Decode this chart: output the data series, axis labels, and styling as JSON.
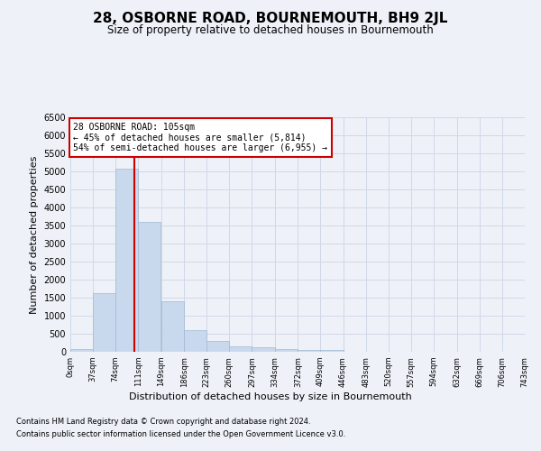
{
  "title": "28, OSBORNE ROAD, BOURNEMOUTH, BH9 2JL",
  "subtitle": "Size of property relative to detached houses in Bournemouth",
  "xlabel": "Distribution of detached houses by size in Bournemouth",
  "ylabel": "Number of detached properties",
  "bin_edges": [
    0,
    37,
    74,
    111,
    149,
    186,
    223,
    260,
    297,
    334,
    372,
    409,
    446,
    483,
    520,
    557,
    594,
    632,
    669,
    706,
    743
  ],
  "bar_heights": [
    75,
    1625,
    5080,
    3600,
    1400,
    600,
    290,
    145,
    115,
    80,
    55,
    55,
    0,
    0,
    0,
    0,
    0,
    0,
    0,
    0
  ],
  "bar_color": "#c9d9ed",
  "bar_edge_color": "#a0b8d0",
  "grid_color": "#d0d8e8",
  "property_line_x": 105,
  "property_line_color": "#cc0000",
  "annotation_line1": "28 OSBORNE ROAD: 105sqm",
  "annotation_line2": "← 45% of detached houses are smaller (5,814)",
  "annotation_line3": "54% of semi-detached houses are larger (6,955) →",
  "annotation_box_color": "#cc0000",
  "ylim": [
    0,
    6500
  ],
  "yticks": [
    0,
    500,
    1000,
    1500,
    2000,
    2500,
    3000,
    3500,
    4000,
    4500,
    5000,
    5500,
    6000,
    6500
  ],
  "tick_labels": [
    "0sqm",
    "37sqm",
    "74sqm",
    "111sqm",
    "149sqm",
    "186sqm",
    "223sqm",
    "260sqm",
    "297sqm",
    "334sqm",
    "372sqm",
    "409sqm",
    "446sqm",
    "483sqm",
    "520sqm",
    "557sqm",
    "594sqm",
    "632sqm",
    "669sqm",
    "706sqm",
    "743sqm"
  ],
  "footnote1": "Contains HM Land Registry data © Crown copyright and database right 2024.",
  "footnote2": "Contains public sector information licensed under the Open Government Licence v3.0.",
  "background_color": "#eef2f8",
  "plot_bg_color": "#eef2f8"
}
